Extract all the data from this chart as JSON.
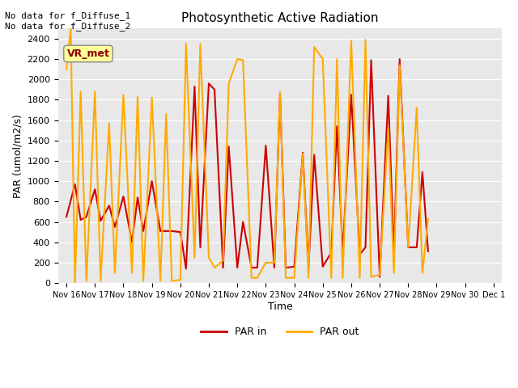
{
  "title": "Photosynthetic Active Radiation",
  "xlabel": "Time",
  "ylabel": "PAR (umol/m2/s)",
  "text_top_left": "No data for f_Diffuse_1\nNo data for f_Diffuse_2",
  "legend_label1": "PAR in",
  "legend_label2": "PAR out",
  "legend_box_label": "VR_met",
  "color_par_in": "#cc0000",
  "color_par_out": "#ffaa00",
  "ylim": [
    0,
    2500
  ],
  "background_color": "#e8e8e8",
  "x_labels": [
    "Nov 16",
    "Nov 17",
    "Nov 18",
    "Nov 19",
    "Nov 20",
    "Nov 21",
    "Nov 22",
    "Nov 23",
    "Nov 24",
    "Nov 25",
    "Nov 26",
    "Nov 27",
    "Nov 28",
    "Nov 29",
    "Nov 30",
    "Dec 1"
  ],
  "par_in_x": [
    0,
    0.3,
    0.5,
    0.7,
    1.0,
    1.2,
    1.5,
    1.7,
    2.0,
    2.3,
    2.5,
    2.7,
    3.0,
    3.3,
    3.5,
    3.7,
    4.0,
    4.2,
    4.5,
    4.7,
    5.0,
    5.2,
    5.5,
    5.7,
    6.0,
    6.2,
    6.5,
    6.7,
    7.0,
    7.3,
    7.5,
    7.7,
    8.0,
    8.3,
    8.5,
    8.7,
    9.0,
    9.3,
    9.5,
    9.7,
    10.0,
    10.3,
    10.5,
    10.7,
    11.0,
    11.3,
    11.5,
    11.7,
    12.0,
    12.3,
    12.5,
    12.7
  ],
  "par_in_y": [
    650,
    970,
    620,
    650,
    920,
    610,
    760,
    550,
    850,
    400,
    840,
    510,
    1000,
    510,
    510,
    510,
    500,
    140,
    1930,
    350,
    1960,
    1900,
    150,
    1340,
    150,
    600,
    150,
    150,
    1350,
    150,
    1870,
    150,
    160,
    1280,
    150,
    1260,
    160,
    300,
    1540,
    300,
    1850,
    280,
    350,
    2190,
    60,
    1840,
    280,
    2200,
    350,
    350,
    1090,
    310
  ],
  "par_out_x": [
    0,
    0.15,
    0.3,
    0.5,
    0.7,
    1.0,
    1.2,
    1.5,
    1.7,
    2.0,
    2.3,
    2.5,
    2.7,
    3.0,
    3.3,
    3.5,
    3.7,
    4.0,
    4.2,
    4.5,
    4.7,
    5.0,
    5.2,
    5.5,
    5.7,
    6.0,
    6.2,
    6.5,
    6.7,
    7.0,
    7.3,
    7.5,
    7.7,
    8.0,
    8.3,
    8.5,
    8.7,
    9.0,
    9.3,
    9.5,
    9.7,
    10.0,
    10.3,
    10.5,
    10.7,
    11.0,
    11.3,
    11.5,
    11.7,
    12.0,
    12.3,
    12.5,
    12.7
  ],
  "par_out_y": [
    2100,
    2500,
    0,
    1880,
    20,
    1880,
    20,
    1570,
    100,
    1850,
    100,
    1830,
    20,
    1820,
    20,
    1660,
    20,
    30,
    2350,
    250,
    2350,
    250,
    150,
    220,
    1960,
    2200,
    2190,
    50,
    50,
    200,
    200,
    1870,
    50,
    50,
    1270,
    50,
    2320,
    2200,
    50,
    2200,
    50,
    2380,
    50,
    2390,
    60,
    80,
    1520,
    100,
    2140,
    350,
    1720,
    100,
    630
  ],
  "yticks": [
    0,
    200,
    400,
    600,
    800,
    1000,
    1200,
    1400,
    1600,
    1800,
    2000,
    2200,
    2400
  ],
  "xtick_positions": [
    0,
    1,
    2,
    3,
    4,
    5,
    6,
    7,
    8,
    9,
    10,
    11,
    12,
    13,
    14,
    15
  ]
}
